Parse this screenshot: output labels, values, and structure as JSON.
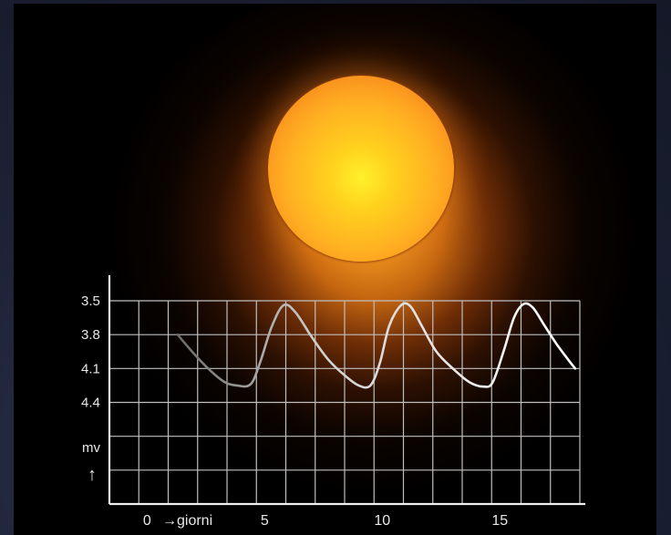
{
  "chart_data": {
    "type": "line",
    "ylabel": "mv",
    "y_arrow": "↑",
    "y_reversed": true,
    "ylim": [
      3.5,
      5.3
    ],
    "y_ticks": [
      {
        "value": 3.5,
        "label": "3.5"
      },
      {
        "value": 3.8,
        "label": "3.8"
      },
      {
        "value": 4.1,
        "label": "4.1"
      },
      {
        "value": 4.4,
        "label": "4.4"
      }
    ],
    "x_ticks": [
      {
        "value": 0,
        "label": "0"
      },
      {
        "value": 5,
        "label": "5"
      },
      {
        "value": 10,
        "label": "10"
      },
      {
        "value": 15,
        "label": "15"
      }
    ],
    "xlabel": "→giorni",
    "xlim": [
      -1.6,
      18.4
    ],
    "grid": true,
    "series": [
      {
        "x": [
          1.3,
          2.0,
          2.7,
          3.3,
          3.8,
          4.4,
          4.8,
          5.3,
          5.8,
          6.3,
          7.0,
          7.7,
          8.4,
          9.0,
          9.5,
          9.9,
          10.3,
          10.8,
          11.2,
          11.7,
          12.3,
          13.0,
          13.7,
          14.3,
          14.7,
          15.2,
          15.6,
          16.0,
          16.4,
          16.9,
          17.4,
          17.9,
          18.2
        ],
        "y": [
          3.8,
          3.97,
          4.12,
          4.22,
          4.25,
          4.24,
          4.05,
          3.73,
          3.54,
          3.6,
          3.82,
          4.02,
          4.16,
          4.25,
          4.25,
          4.05,
          3.72,
          3.54,
          3.55,
          3.73,
          3.95,
          4.1,
          4.22,
          4.26,
          4.22,
          3.92,
          3.65,
          3.53,
          3.56,
          3.72,
          3.88,
          4.02,
          4.1
        ]
      }
    ]
  },
  "colors": {
    "grid": "#bfbfbf",
    "axis": "#f0f0f0",
    "curve": "#ffffff",
    "curve_faint": "#6a6a6a",
    "panel": "#000000",
    "sun_core": "#fff12a",
    "sun_edge": "#d86a12"
  }
}
